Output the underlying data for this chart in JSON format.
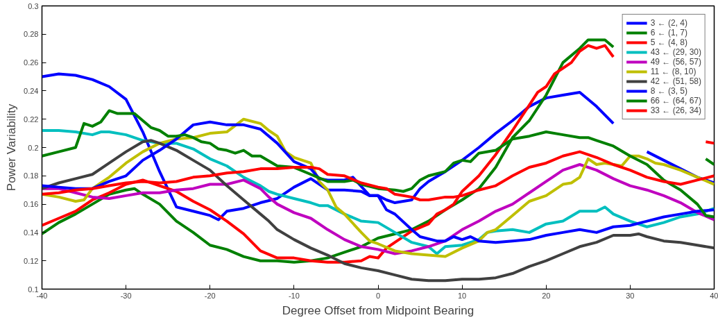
{
  "chart_data": {
    "type": "line",
    "xlabel": "Degree Offset from Midpoint Bearing",
    "ylabel": "Power Variability",
    "xlim": [
      -40,
      40
    ],
    "ylim": [
      0.1,
      0.3
    ],
    "xticks": [
      -40,
      -30,
      -20,
      -10,
      0,
      10,
      20,
      30,
      40
    ],
    "yticks": [
      0.1,
      0.12,
      0.14,
      0.16,
      0.18,
      0.2,
      0.22,
      0.24,
      0.26,
      0.28,
      0.3
    ],
    "legend": "top right",
    "series": [
      {
        "name": "3 ← (2, 4)",
        "color": "#0000ff",
        "x": [
          -40,
          -38,
          -36,
          -34,
          -32,
          -30,
          -28,
          -26,
          -24,
          -22,
          -20,
          -19,
          -18,
          -16,
          -14,
          -12,
          -10,
          -8,
          -6,
          -4,
          -2,
          -1,
          0,
          1,
          2,
          4,
          5,
          6,
          8,
          10,
          12,
          14,
          16,
          18,
          20,
          22,
          24,
          26,
          28,
          30,
          32,
          34,
          36,
          38,
          40
        ],
        "values": [
          0.25,
          0.252,
          0.251,
          0.248,
          0.243,
          0.234,
          0.211,
          0.183,
          0.158,
          0.155,
          0.152,
          0.149,
          0.155,
          0.157,
          0.161,
          0.164,
          0.172,
          0.178,
          0.17,
          0.17,
          0.169,
          0.166,
          0.166,
          0.163,
          0.161,
          0.163,
          0.171,
          0.176,
          0.183,
          0.191,
          0.2,
          0.21,
          0.219,
          0.229,
          0.235,
          0.237,
          0.239,
          0.229,
          0.217,
          null,
          0.197,
          0.191,
          0.185,
          0.179,
          0.175
        ]
      },
      {
        "name": "6 ← (1, 7)",
        "color": "#008000",
        "x": [
          -40,
          -38,
          -36,
          -34,
          -32,
          -30,
          -29,
          -28,
          -26,
          -24,
          -22,
          -20,
          -18,
          -16,
          -14,
          -12,
          -10,
          -8,
          -6,
          -4,
          -2,
          0,
          2,
          4,
          6,
          8,
          10,
          12,
          14,
          16,
          18,
          20,
          22,
          24,
          25,
          27,
          28,
          30,
          32,
          34,
          36,
          38,
          39,
          40
        ],
        "values": [
          0.139,
          0.147,
          0.153,
          0.16,
          0.167,
          0.17,
          0.171,
          0.167,
          0.16,
          0.148,
          0.14,
          0.131,
          0.128,
          0.123,
          0.12,
          0.12,
          0.119,
          0.12,
          0.122,
          0.126,
          0.13,
          0.136,
          0.139,
          0.142,
          0.148,
          0.156,
          0.163,
          0.171,
          0.186,
          0.207,
          0.219,
          0.237,
          0.26,
          0.27,
          0.276,
          0.276,
          0.271,
          null,
          null,
          null,
          null,
          null,
          0.192,
          0.188
        ]
      },
      {
        "name": "5 ← (4, 8)",
        "color": "#ff0000",
        "x": [
          -40,
          -38,
          -36,
          -34,
          -32,
          -30,
          -28,
          -26,
          -24,
          -22,
          -20,
          -18,
          -16,
          -14,
          -12,
          -10,
          -8,
          -6,
          -4,
          -2,
          -1,
          0,
          1,
          2,
          4,
          6,
          7,
          8,
          9,
          10,
          12,
          14,
          16,
          18,
          19,
          20,
          21,
          22,
          23,
          24,
          25,
          26,
          27,
          28,
          30,
          32,
          34,
          36,
          38,
          39,
          40
        ],
        "values": [
          0.145,
          0.15,
          0.155,
          0.163,
          0.168,
          0.174,
          0.177,
          0.173,
          0.169,
          0.162,
          0.156,
          0.148,
          0.139,
          0.127,
          0.122,
          0.122,
          0.12,
          0.119,
          0.119,
          0.12,
          0.123,
          0.122,
          0.129,
          0.133,
          0.141,
          0.146,
          0.153,
          0.156,
          0.16,
          0.169,
          0.18,
          0.195,
          0.212,
          0.23,
          0.239,
          0.243,
          0.252,
          0.256,
          0.26,
          0.268,
          0.272,
          0.27,
          0.272,
          0.264,
          null,
          null,
          null,
          null,
          null,
          0.204,
          0.203
        ]
      },
      {
        "name": "43 ← (29, 30)",
        "color": "#00bfbf",
        "x": [
          -40,
          -38,
          -36,
          -34,
          -33,
          -32,
          -30,
          -28,
          -26,
          -24,
          -22,
          -20,
          -18,
          -16,
          -14,
          -13,
          -12,
          -10,
          -8,
          -7,
          -6,
          -4,
          -2,
          0,
          2,
          4,
          6,
          7,
          8,
          10,
          12,
          13,
          14,
          16,
          18,
          20,
          22,
          24,
          26,
          27,
          28,
          30,
          32,
          34,
          36,
          38,
          40
        ],
        "values": [
          0.212,
          0.212,
          0.211,
          0.209,
          0.211,
          0.211,
          0.209,
          0.205,
          0.203,
          0.203,
          0.199,
          0.192,
          0.187,
          0.179,
          0.173,
          0.169,
          0.167,
          0.164,
          0.161,
          0.159,
          0.159,
          0.153,
          0.148,
          0.147,
          0.14,
          0.133,
          0.13,
          0.125,
          0.13,
          0.131,
          0.135,
          0.14,
          0.141,
          0.142,
          0.14,
          0.146,
          0.148,
          0.155,
          0.155,
          0.158,
          0.153,
          0.148,
          0.144,
          0.147,
          0.151,
          0.153,
          0.157
        ]
      },
      {
        "name": "49 ← (56, 57)",
        "color": "#bf00bf",
        "x": [
          -40,
          -38,
          -36,
          -34,
          -32,
          -30,
          -28,
          -26,
          -24,
          -22,
          -20,
          -18,
          -16,
          -14,
          -13,
          -12,
          -10,
          -8,
          -6,
          -4,
          -2,
          0,
          2,
          4,
          6,
          8,
          10,
          12,
          14,
          16,
          18,
          20,
          22,
          24,
          26,
          28,
          30,
          32,
          34,
          36,
          38,
          40
        ],
        "values": [
          0.171,
          0.171,
          0.168,
          0.165,
          0.164,
          0.166,
          0.168,
          0.168,
          0.17,
          0.171,
          0.174,
          0.174,
          0.177,
          0.171,
          0.165,
          0.16,
          0.154,
          0.15,
          0.142,
          0.135,
          0.13,
          0.128,
          0.125,
          0.127,
          0.13,
          0.134,
          0.142,
          0.148,
          0.155,
          0.16,
          0.168,
          0.176,
          0.184,
          0.188,
          0.184,
          0.178,
          0.173,
          0.17,
          0.166,
          0.161,
          0.154,
          0.149
        ]
      },
      {
        "name": "11 ← (8, 10)",
        "color": "#bfbf00",
        "x": [
          -40,
          -38,
          -36,
          -35,
          -34,
          -32,
          -30,
          -28,
          -26,
          -24,
          -22,
          -20,
          -18,
          -16,
          -14,
          -13,
          -12,
          -11,
          -10,
          -8,
          -7,
          -6,
          -5,
          -4,
          -2,
          -1,
          0,
          2,
          4,
          6,
          8,
          10,
          12,
          13,
          14,
          16,
          18,
          20,
          22,
          23,
          24,
          25,
          26,
          27,
          28,
          29,
          30,
          31,
          32,
          33,
          34,
          36,
          38,
          40
        ],
        "values": [
          0.167,
          0.165,
          0.162,
          0.163,
          0.171,
          0.179,
          0.189,
          0.197,
          0.203,
          0.206,
          0.207,
          0.21,
          0.211,
          0.22,
          0.217,
          0.212,
          0.208,
          0.197,
          0.193,
          0.189,
          0.176,
          0.17,
          0.158,
          0.153,
          0.14,
          0.134,
          0.132,
          0.127,
          0.125,
          0.124,
          0.123,
          0.129,
          0.134,
          0.14,
          0.142,
          0.152,
          0.162,
          0.166,
          0.174,
          0.175,
          0.179,
          0.192,
          0.188,
          0.189,
          0.188,
          0.187,
          0.194,
          0.194,
          0.192,
          0.189,
          0.188,
          0.184,
          0.179,
          0.174
        ]
      },
      {
        "name": "42 ← (51, 58)",
        "color": "#404040",
        "x": [
          -40,
          -38,
          -36,
          -34,
          -32,
          -30,
          -28,
          -27,
          -26,
          -24,
          -22,
          -20,
          -18,
          -16,
          -14,
          -13,
          -12,
          -10,
          -8,
          -6,
          -4,
          -2,
          0,
          2,
          4,
          6,
          8,
          10,
          12,
          14,
          16,
          18,
          20,
          22,
          24,
          26,
          28,
          30,
          31,
          32,
          34,
          36,
          38,
          40
        ],
        "values": [
          0.171,
          0.175,
          0.178,
          0.181,
          0.189,
          0.197,
          0.204,
          0.205,
          0.203,
          0.198,
          0.191,
          0.184,
          0.173,
          0.163,
          0.153,
          0.148,
          0.142,
          0.135,
          0.129,
          0.124,
          0.118,
          0.115,
          0.113,
          0.11,
          0.107,
          0.106,
          0.106,
          0.107,
          0.107,
          0.108,
          0.111,
          0.116,
          0.12,
          0.125,
          0.13,
          0.133,
          0.138,
          0.138,
          0.139,
          0.137,
          0.134,
          0.133,
          0.131,
          0.129
        ]
      },
      {
        "name": "8 ← (3, 5)",
        "color": "#0000ff",
        "x": [
          -40,
          -38,
          -36,
          -34,
          -32,
          -30,
          -28,
          -26,
          -24,
          -22,
          -20,
          -18,
          -16,
          -14,
          -12,
          -10,
          -8,
          -7,
          -6,
          -4,
          -3,
          -1,
          0,
          1,
          2,
          4,
          5,
          7,
          8,
          9,
          10,
          11,
          12,
          14,
          16,
          18,
          20,
          22,
          24,
          26,
          28,
          30,
          32,
          34,
          36,
          38,
          40
        ],
        "values": [
          0.173,
          0.172,
          0.171,
          0.171,
          0.176,
          0.18,
          0.191,
          0.198,
          0.206,
          0.216,
          0.218,
          0.216,
          0.216,
          0.213,
          0.203,
          0.19,
          0.185,
          0.178,
          0.177,
          0.177,
          0.179,
          0.166,
          0.166,
          0.156,
          0.153,
          0.142,
          0.137,
          0.134,
          0.134,
          0.137,
          0.135,
          0.137,
          0.134,
          0.133,
          0.134,
          0.135,
          0.138,
          0.14,
          0.142,
          0.14,
          0.144,
          0.145,
          0.148,
          0.151,
          0.153,
          0.155,
          0.156
        ]
      },
      {
        "name": "66 ← (64, 67)",
        "color": "#008000",
        "x": [
          -40,
          -38,
          -36,
          -35,
          -34,
          -33,
          -32,
          -31,
          -30,
          -29,
          -28,
          -27,
          -26,
          -25,
          -24,
          -23,
          -22,
          -21,
          -20,
          -19,
          -18,
          -17,
          -16,
          -15,
          -14,
          -12,
          -10,
          -8,
          -6,
          -4,
          -3,
          -2,
          0,
          2,
          3,
          4,
          5,
          6,
          8,
          9,
          10,
          11,
          12,
          14,
          16,
          18,
          20,
          22,
          24,
          25,
          26,
          28,
          30,
          32,
          34,
          36,
          38,
          39,
          40
        ],
        "values": [
          0.194,
          0.197,
          0.2,
          0.217,
          0.215,
          0.218,
          0.226,
          0.224,
          0.224,
          0.224,
          0.219,
          0.214,
          0.212,
          0.208,
          0.208,
          0.209,
          0.207,
          0.204,
          0.203,
          0.199,
          0.198,
          0.196,
          0.198,
          0.194,
          0.194,
          0.187,
          0.186,
          0.181,
          0.176,
          0.176,
          0.177,
          0.174,
          0.171,
          0.17,
          0.169,
          0.171,
          0.177,
          0.18,
          0.183,
          0.189,
          0.191,
          0.19,
          0.196,
          0.198,
          0.206,
          0.208,
          0.211,
          0.209,
          0.207,
          0.207,
          0.205,
          0.201,
          0.194,
          0.188,
          0.177,
          0.17,
          0.16,
          0.152,
          0.151
        ]
      },
      {
        "name": "33 ← (26, 34)",
        "color": "#ff0000",
        "x": [
          -40,
          -38,
          -36,
          -34,
          -32,
          -30,
          -28,
          -26,
          -24,
          -22,
          -20,
          -18,
          -16,
          -14,
          -12,
          -10,
          -8,
          -7,
          -6,
          -4,
          -2,
          0,
          1,
          2,
          4,
          5,
          6,
          8,
          9,
          10,
          12,
          14,
          16,
          18,
          20,
          22,
          24,
          26,
          28,
          30,
          32,
          34,
          36,
          38,
          40
        ],
        "values": [
          0.167,
          0.168,
          0.17,
          0.171,
          0.173,
          0.175,
          0.176,
          0.175,
          0.176,
          0.179,
          0.18,
          0.182,
          0.183,
          0.185,
          0.185,
          0.186,
          0.186,
          0.185,
          0.181,
          0.18,
          0.175,
          0.172,
          0.171,
          0.167,
          0.165,
          0.163,
          0.163,
          0.165,
          0.165,
          0.166,
          0.17,
          0.173,
          0.18,
          0.186,
          0.189,
          0.194,
          0.197,
          0.193,
          0.188,
          0.184,
          0.179,
          0.176,
          0.174,
          0.177,
          0.18
        ]
      }
    ]
  }
}
